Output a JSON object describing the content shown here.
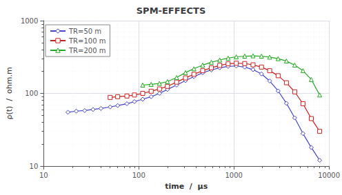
{
  "chart_data": {
    "type": "line",
    "title": "SPM-EFFECTS",
    "xlabel": "time  /  μs",
    "ylabel": "ρ(t)  /  ohm.m",
    "log": true,
    "grid": true,
    "legend": "upper left",
    "xlim": [
      10,
      10000
    ],
    "ylim": [
      10,
      1000
    ],
    "xticks": [
      10,
      100,
      1000,
      10000
    ],
    "yticks": [
      10,
      100,
      1000
    ],
    "series": [
      {
        "name": "TR=50 m",
        "color": "#4444cc",
        "marker": "diamond",
        "x": [
          18,
          22,
          27,
          33,
          40,
          50,
          60,
          75,
          90,
          110,
          135,
          165,
          200,
          250,
          310,
          380,
          470,
          580,
          710,
          870,
          1060,
          1300,
          1590,
          1950,
          2380,
          2920,
          3570,
          4360,
          5330,
          6520,
          7980
        ],
        "values": [
          55,
          57,
          58,
          60,
          62,
          65,
          68,
          72,
          77,
          83,
          90,
          100,
          113,
          130,
          150,
          170,
          192,
          210,
          225,
          235,
          238,
          230,
          212,
          185,
          148,
          108,
          73,
          46,
          28,
          18,
          12
        ]
      },
      {
        "name": "TR=100 m",
        "color": "#cc2020",
        "marker": "square",
        "x": [
          50,
          60,
          75,
          90,
          110,
          135,
          165,
          200,
          250,
          310,
          380,
          470,
          580,
          710,
          870,
          1060,
          1300,
          1590,
          1950,
          2380,
          2920,
          3570,
          4360,
          5330,
          6520,
          7980
        ],
        "values": [
          88,
          90,
          92,
          95,
          100,
          107,
          115,
          125,
          143,
          163,
          183,
          205,
          225,
          243,
          255,
          260,
          257,
          247,
          230,
          205,
          175,
          140,
          105,
          72,
          45,
          30
        ]
      },
      {
        "name": "TR=200 m",
        "color": "#20aa20",
        "marker": "triangle",
        "x": [
          110,
          135,
          165,
          200,
          250,
          310,
          380,
          470,
          580,
          710,
          870,
          1060,
          1300,
          1590,
          1950,
          2380,
          2920,
          3570,
          4360,
          5330,
          6520,
          7980
        ],
        "values": [
          130,
          133,
          137,
          145,
          165,
          193,
          218,
          245,
          268,
          288,
          305,
          318,
          325,
          328,
          325,
          315,
          300,
          278,
          245,
          205,
          155,
          95
        ]
      }
    ]
  }
}
